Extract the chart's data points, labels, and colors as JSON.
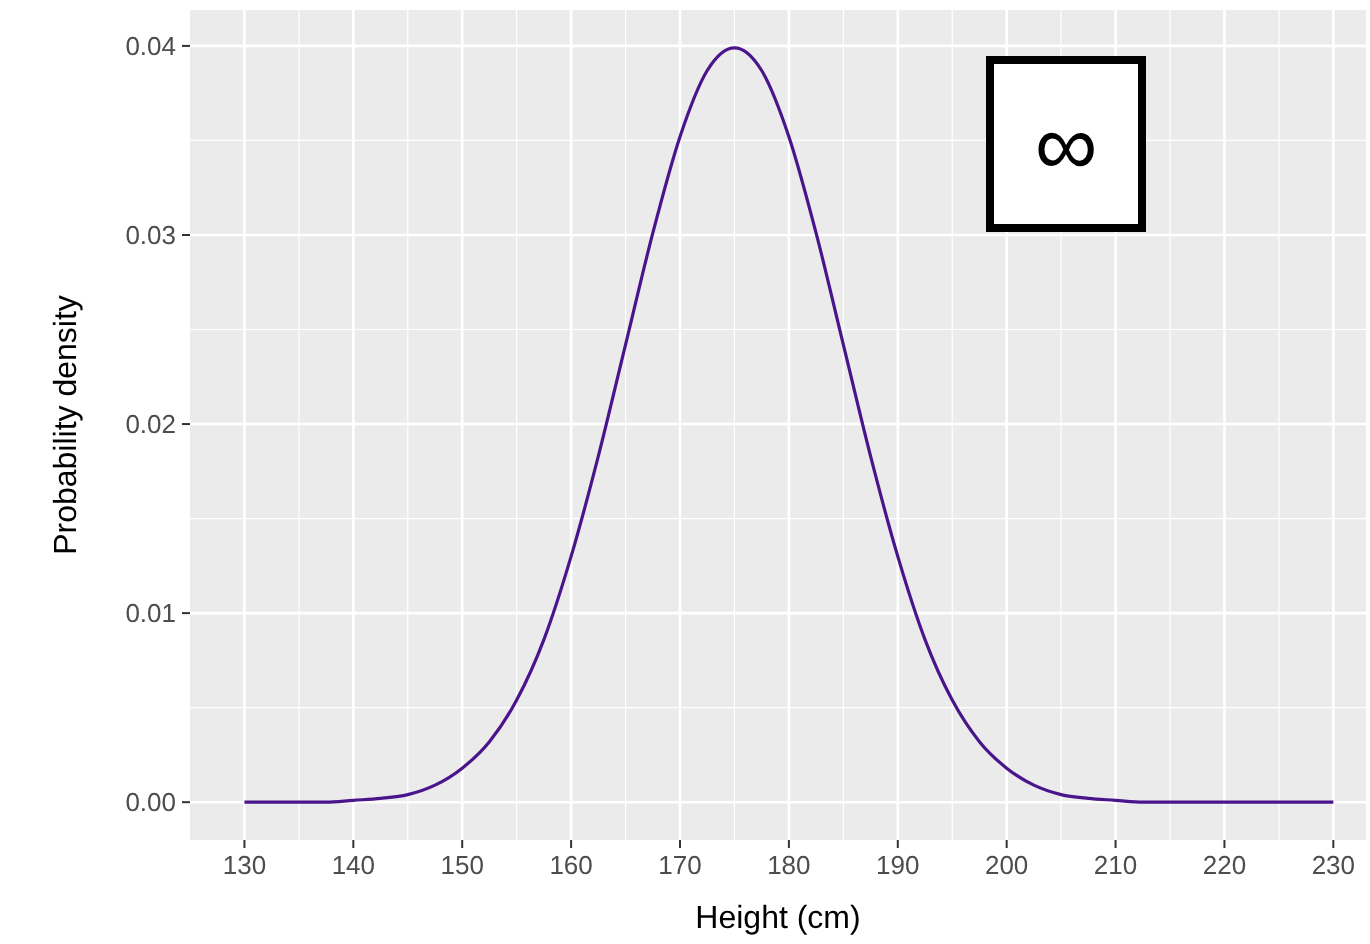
{
  "chart_data": {
    "type": "line",
    "xlabel": "Height (cm)",
    "ylabel": "Probability density",
    "x": [
      130,
      132.5,
      135,
      137.5,
      140,
      142.5,
      145,
      147.5,
      150,
      152.5,
      155,
      157.5,
      160,
      162.5,
      165,
      167.5,
      170,
      172.5,
      175,
      177.5,
      180,
      182.5,
      185,
      187.5,
      190,
      192.5,
      195,
      197.5,
      200,
      202.5,
      205,
      207.5,
      210,
      212.5,
      215,
      217.5,
      220,
      222.5,
      225,
      227.5,
      230
    ],
    "series": [
      {
        "color": "#4a148c",
        "values": [
          0,
          0,
          0,
          0,
          0.0001,
          0.0002,
          0.0004,
          0.0009,
          0.0018,
          0.0032,
          0.0054,
          0.0086,
          0.013,
          0.0183,
          0.0242,
          0.0301,
          0.0352,
          0.0387,
          0.0399,
          0.0387,
          0.0352,
          0.0301,
          0.0242,
          0.0183,
          0.013,
          0.0086,
          0.0054,
          0.0032,
          0.0018,
          0.0009,
          0.0004,
          0.0002,
          0.0001,
          0,
          0,
          0,
          0,
          0,
          0,
          0,
          0
        ]
      }
    ],
    "xlim": [
      125,
      233
    ],
    "ylim": [
      -0.002,
      0.0419
    ],
    "xticks": [
      130,
      140,
      150,
      160,
      170,
      180,
      190,
      200,
      210,
      220,
      230
    ],
    "yticks": [
      {
        "value": 0,
        "label": "0.00"
      },
      {
        "value": 0.01,
        "label": "0.01"
      },
      {
        "value": 0.02,
        "label": "0.02"
      },
      {
        "value": 0.03,
        "label": "0.03"
      },
      {
        "value": 0.04,
        "label": "0.04"
      }
    ],
    "grid": true,
    "marker": "none",
    "line_style": "solid",
    "annotations": [
      "∞"
    ]
  }
}
